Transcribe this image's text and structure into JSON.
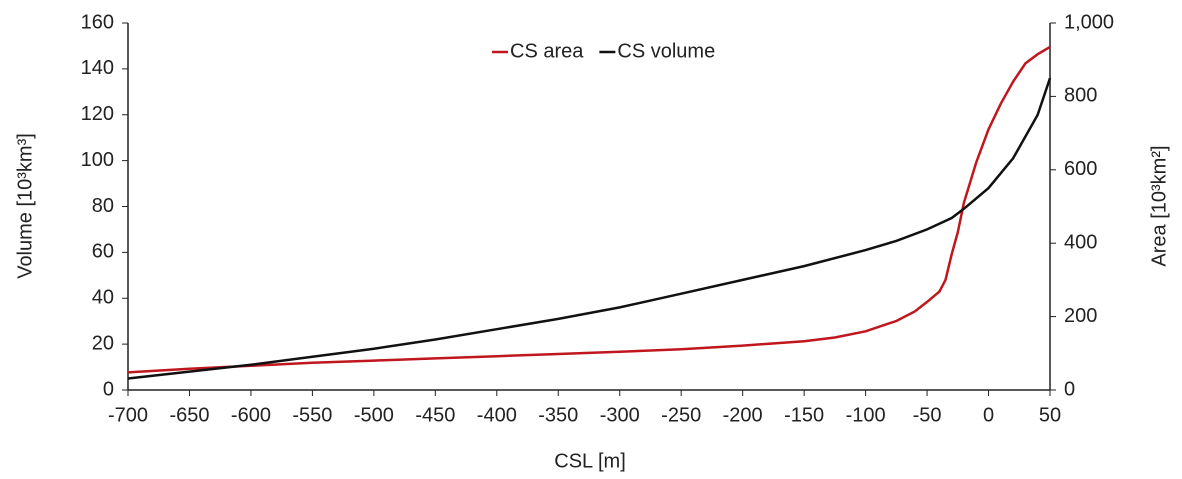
{
  "chart_data": {
    "type": "line",
    "x_label": "CSL [m]",
    "y_label": "Volume [10³km³]",
    "y2_label": "Area [10³km²]",
    "xlim": [
      -700,
      50
    ],
    "xticks": [
      -700,
      -650,
      -600,
      -550,
      -500,
      -450,
      -400,
      -350,
      -300,
      -250,
      -200,
      -150,
      -100,
      -50,
      0,
      50
    ],
    "ylim": [
      0,
      160
    ],
    "yticks": [
      0,
      20,
      40,
      60,
      80,
      100,
      120,
      140,
      160
    ],
    "y2lim": [
      0,
      1000
    ],
    "y2ticks": [
      0,
      200,
      400,
      600,
      {
        "value": 1000,
        "label": "1,000"
      },
      800
    ],
    "legend": "top",
    "series": [
      {
        "name": "CS area",
        "color": "#c0161d",
        "axis": "y2",
        "x": [
          -700,
          -650,
          -600,
          -550,
          -500,
          -450,
          -400,
          -350,
          -300,
          -250,
          -200,
          -150,
          -125,
          -100,
          -75,
          -60,
          -50,
          -40,
          -35,
          -30,
          -25,
          -20,
          -10,
          0,
          10,
          20,
          30,
          40,
          50
        ],
        "values": [
          48,
          58,
          66,
          74,
          80,
          86,
          92,
          98,
          104,
          111,
          121,
          133,
          143,
          160,
          188,
          214,
          240,
          268,
          300,
          370,
          430,
          510,
          620,
          710,
          780,
          840,
          890,
          915,
          935
        ]
      },
      {
        "name": "CS volume",
        "color": "#111111",
        "x": [
          -700,
          -650,
          -600,
          -550,
          -500,
          -450,
          -400,
          -350,
          -300,
          -250,
          -200,
          -150,
          -100,
          -75,
          -50,
          -30,
          -20,
          0,
          20,
          40,
          50
        ],
        "values": [
          5,
          8,
          11,
          14.5,
          18,
          22,
          26.5,
          31,
          36,
          42,
          48,
          54,
          61,
          65,
          70,
          75,
          79,
          88,
          101,
          120,
          136
        ]
      }
    ]
  }
}
